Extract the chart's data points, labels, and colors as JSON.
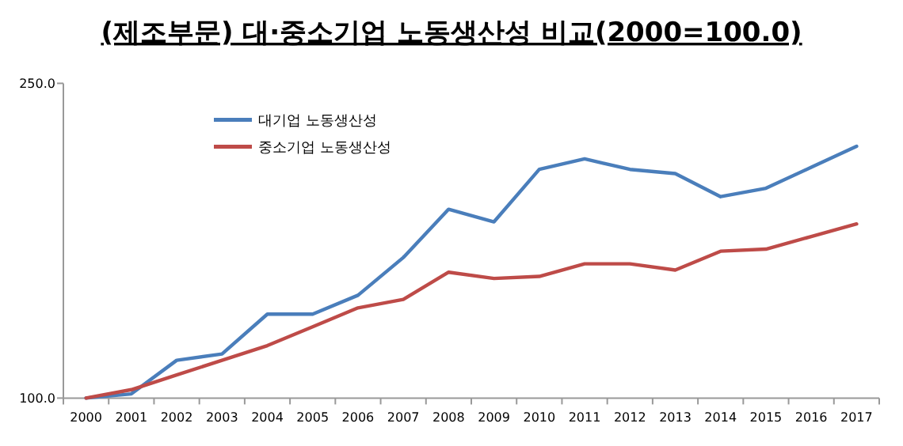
{
  "chart_data": {
    "type": "line",
    "title": "(제조부문) 대·중소기업 노동생산성 비교(2000=100.0)",
    "categories": [
      "2000",
      "2001",
      "2002",
      "2003",
      "2004",
      "2005",
      "2006",
      "2007",
      "2008",
      "2009",
      "2010",
      "2011",
      "2012",
      "2013",
      "2014",
      "2015",
      "2016",
      "2017"
    ],
    "series": [
      {
        "name": "대기업 노동생산성",
        "color": "#4a7ebb",
        "values": [
          100,
          102,
          118,
          121,
          140,
          140,
          149,
          167,
          190,
          184,
          209,
          214,
          209,
          207,
          196,
          200,
          210,
          220
        ]
      },
      {
        "name": "중소기업 노동생산성",
        "color": "#be4b48",
        "values": [
          100,
          104,
          111,
          118,
          125,
          134,
          143,
          147,
          160,
          157,
          158,
          164,
          164,
          161,
          170,
          171,
          177,
          183
        ]
      }
    ],
    "ylim": [
      100,
      250
    ],
    "yticks": [
      {
        "value": 100,
        "label": "100.0"
      },
      {
        "value": 250,
        "label": "250.0"
      }
    ],
    "grid": false,
    "legend": "top left",
    "marker": "none",
    "line_style": "solid"
  }
}
